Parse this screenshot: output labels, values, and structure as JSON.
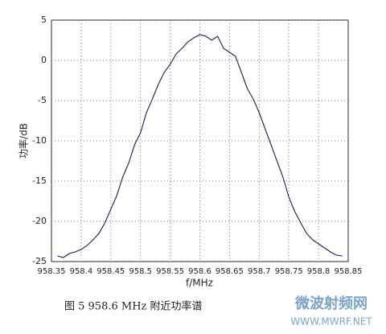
{
  "chart_data": {
    "type": "line",
    "xlabel": "f/MHz",
    "ylabel": "功率/dB",
    "caption": "图 5  958.6 MHz 附近功率谱",
    "watermark": "微波射频网",
    "watermark_url": "WWW.MWRF.NET",
    "x": [
      958.36,
      958.37,
      958.38,
      958.39,
      958.4,
      958.41,
      958.42,
      958.43,
      958.44,
      958.45,
      958.46,
      958.47,
      958.48,
      958.49,
      958.5,
      958.51,
      958.52,
      958.53,
      958.54,
      958.55,
      958.56,
      958.57,
      958.58,
      958.59,
      958.6,
      958.61,
      958.62,
      958.63,
      958.64,
      958.65,
      958.66,
      958.67,
      958.68,
      958.69,
      958.7,
      958.71,
      958.72,
      958.73,
      958.74,
      958.75,
      958.76,
      958.77,
      958.78,
      958.79,
      958.8,
      958.81,
      958.82,
      958.83,
      958.84
    ],
    "series": [
      {
        "color": "#1c1f5a",
        "values": [
          -24.3,
          -24.5,
          -24.0,
          -23.8,
          -23.5,
          -23.0,
          -22.3,
          -21.5,
          -20.2,
          -18.5,
          -16.8,
          -14.5,
          -12.8,
          -10.5,
          -9.0,
          -6.5,
          -4.8,
          -3.0,
          -1.5,
          -0.5,
          0.8,
          1.5,
          2.3,
          2.8,
          3.2,
          3.0,
          2.5,
          3.0,
          1.5,
          1.0,
          0.5,
          -1.5,
          -3.5,
          -4.8,
          -6.5,
          -8.5,
          -10.5,
          -12.5,
          -14.5,
          -17.0,
          -18.8,
          -20.2,
          -21.5,
          -22.3,
          -22.8,
          -23.3,
          -23.8,
          -24.2,
          -24.3
        ]
      }
    ],
    "xlim": [
      958.35,
      958.85
    ],
    "xticks": [
      958.35,
      958.4,
      958.45,
      958.5,
      958.55,
      958.6,
      958.65,
      958.7,
      958.75,
      958.8,
      958.85
    ],
    "ylim": [
      -25,
      5
    ],
    "yticks": [
      -25,
      -20,
      -15,
      -10,
      -5,
      0,
      5
    ],
    "grid": true
  }
}
